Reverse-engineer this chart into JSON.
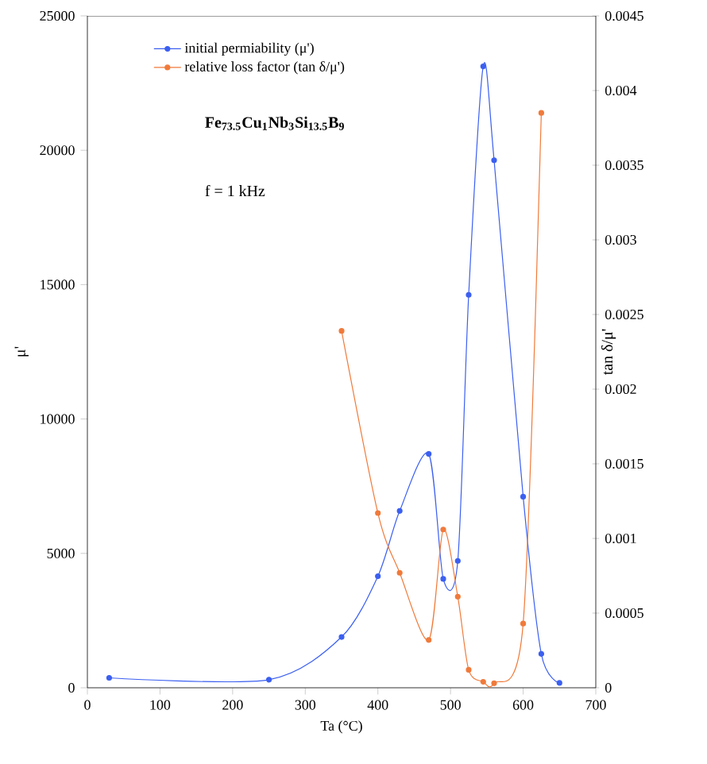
{
  "chart_data": {
    "type": "line",
    "xlabel": "Ta (°C)",
    "ylabel": "μ'",
    "y2label": "tan δ/μ'",
    "annotations": [
      "Fe$_{73.5}$Cu$_{1}$Nb$_{3}$Si$_{13.5}$B$_{9}$",
      "f = 1 kHz"
    ],
    "series": [
      {
        "name": "initial permiability (μ')",
        "color": "#3b5ff0",
        "x": [
          30,
          250,
          350,
          400,
          430,
          470,
          490,
          510,
          525,
          545,
          560,
          600,
          625,
          650
        ],
        "values": [
          370,
          300,
          1890,
          4150,
          6580,
          8700,
          4050,
          4720,
          14620,
          23120,
          19630,
          7110,
          1260,
          180
        ]
      },
      {
        "name": "relative loss factor (tan δ/μ')",
        "color": "#f07a3a",
        "axis": "y2",
        "x": [
          350,
          400,
          430,
          470,
          490,
          510,
          525,
          545,
          560,
          600,
          625
        ],
        "values": [
          0.00239,
          0.00117,
          0.00077,
          0.00032,
          0.00106,
          0.00061,
          0.00012,
          4e-05,
          3e-05,
          0.00043,
          0.00385
        ]
      }
    ],
    "xlim": [
      0,
      700
    ],
    "xticks": [
      0,
      100,
      200,
      300,
      400,
      500,
      600,
      700
    ],
    "ylim": [
      0,
      25000
    ],
    "yticks": [
      0,
      5000,
      10000,
      15000,
      20000,
      25000
    ],
    "y2lim": [
      0,
      0.0045
    ],
    "y2ticks": [
      0,
      0.0005,
      0.001,
      0.0015,
      0.002,
      0.0025,
      0.003,
      0.0035,
      0.004,
      0.0045
    ],
    "grid": false,
    "legend": "top left",
    "marker": "circle",
    "line_style": "solid"
  }
}
